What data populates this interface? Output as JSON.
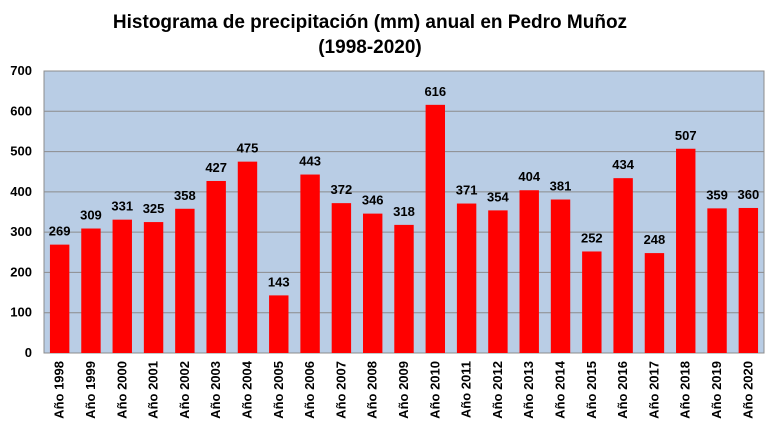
{
  "chart_data": {
    "type": "bar",
    "title": [
      "Histograma de precipitación (mm) anual en Pedro Muñoz",
      "(1998-2020)"
    ],
    "xlabel": "",
    "ylabel": "",
    "ylim": [
      0,
      700
    ],
    "yticks": [
      "0",
      "100",
      "200",
      "300",
      "400",
      "500",
      "600",
      "700"
    ],
    "grid": true,
    "legend": "none",
    "colors": {
      "bar": "#ff0000",
      "plot_background": "#b9cde5",
      "grid": "#8c8c8c"
    },
    "categories": [
      "Año 1998",
      "Año 1999",
      "Año 2000",
      "Año 2001",
      "Año 2002",
      "Año 2003",
      "Año 2004",
      "Año 2005",
      "Año 2006",
      "Año 2007",
      "Año 2008",
      "Año 2009",
      "Año 2010",
      "Año 2011",
      "Año 2012",
      "Año 2013",
      "Año 2014",
      "Año 2015",
      "Año 2016",
      "Año 2017",
      "Año 2018",
      "Año 2019",
      "Año 2020"
    ],
    "values": [
      269,
      309,
      331,
      325,
      358,
      427,
      475,
      143,
      443,
      372,
      346,
      318,
      616,
      371,
      354,
      404,
      381,
      252,
      434,
      248,
      507,
      359,
      360
    ],
    "data_labels": [
      "269",
      "309",
      "331",
      "325",
      "358",
      "427",
      "475",
      "143",
      "443",
      "372",
      "346",
      "318",
      "616",
      "371",
      "354",
      "404",
      "381",
      "252",
      "434",
      "248",
      "507",
      "359",
      "360"
    ]
  }
}
